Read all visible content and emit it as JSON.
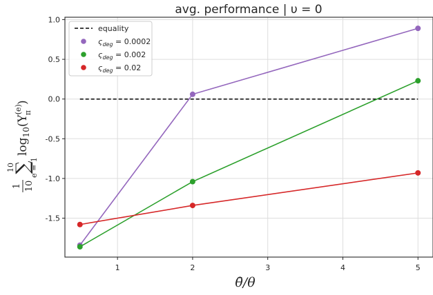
{
  "chart_data": {
    "type": "line",
    "title": "avg. performance | υ = 0",
    "xlabel": "θ̄/θ",
    "ylabel_parts": {
      "frac_num": "1",
      "frac_den": "10",
      "sum_top": "10",
      "sum_symbol": "∑",
      "sum_bottom": "e = 1",
      "term": "log",
      "term_sub": "10",
      "term_arg": "(Υ",
      "term_arg_sup": "(e)",
      "term_arg_sub": "π",
      "term_close": ")"
    },
    "xlim": [
      0.3,
      5.2
    ],
    "ylim": [
      -1.99,
      1.03
    ],
    "x_ticks": [
      1,
      2,
      3,
      4,
      5
    ],
    "x_tick_labels": [
      "1",
      "2",
      "3",
      "4",
      "5"
    ],
    "y_ticks": [
      1.0,
      0.5,
      0.0,
      -0.5,
      -1.0,
      -1.5
    ],
    "y_tick_labels": [
      "1.0",
      "0.5",
      "0.0",
      "-0.5",
      "-1.0",
      "-1.5"
    ],
    "grid": true,
    "legend_position": "top-left",
    "equality": {
      "name": "equality",
      "x": [
        0.5,
        5.0
      ],
      "y": [
        0.0,
        0.0
      ],
      "color": "#000000"
    },
    "series": [
      {
        "name_base": "ς",
        "name_sub": "deg",
        "name_value": " = 0.0002",
        "color": "#9467bd",
        "x": [
          0.5,
          2,
          5
        ],
        "y": [
          -1.84,
          0.06,
          0.89
        ]
      },
      {
        "name_base": "ς",
        "name_sub": "deg",
        "name_value": " = 0.002",
        "color": "#2ca02c",
        "x": [
          0.5,
          2,
          5
        ],
        "y": [
          -1.86,
          -1.04,
          0.23
        ]
      },
      {
        "name_base": "ς",
        "name_sub": "deg",
        "name_value": " = 0.02",
        "color": "#d62728",
        "x": [
          0.5,
          2,
          5
        ],
        "y": [
          -1.58,
          -1.34,
          -0.93
        ]
      }
    ]
  }
}
